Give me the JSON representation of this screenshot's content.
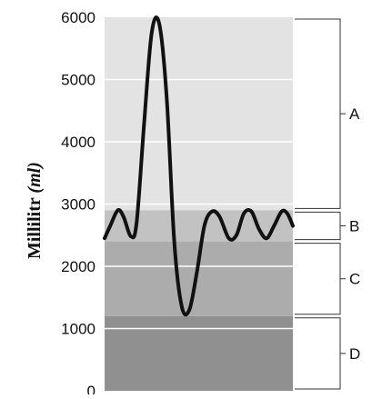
{
  "colors": {
    "band_A": "#e3e3e3",
    "band_B": "#c2c2c2",
    "band_C": "#acacac",
    "band_D": "#909090",
    "gridline": "#ffffff",
    "curve": "#111111",
    "bracket": "#333333"
  },
  "chart_data": {
    "type": "line",
    "title": "",
    "xlabel": "",
    "ylabel": "Millilitr",
    "ylabel_unit": "(ml)",
    "ylim": [
      0,
      6000
    ],
    "yticks": [
      0,
      1000,
      2000,
      3000,
      4000,
      5000,
      6000
    ],
    "ytick_labels": [
      "0",
      "1000",
      "2000",
      "3000",
      "4000",
      "5000",
      "6000"
    ],
    "grid": "horizontal",
    "bands": [
      {
        "label": "A",
        "from": 2900,
        "to": 6000
      },
      {
        "label": "B",
        "from": 2400,
        "to": 2900
      },
      {
        "label": "C",
        "from": 1200,
        "to": 2400
      },
      {
        "label": "D",
        "from": 0,
        "to": 1200
      }
    ],
    "series": [
      {
        "x": [
          0,
          3,
          7,
          10,
          14,
          17,
          21,
          25,
          29,
          33,
          37,
          41,
          45,
          49,
          53,
          57,
          61,
          66,
          70,
          74,
          78,
          82,
          86,
          90,
          94,
          97,
          100
        ],
        "values": [
          2450,
          2650,
          2900,
          2800,
          2480,
          2700,
          4300,
          5750,
          5900,
          4700,
          2400,
          1350,
          1300,
          1900,
          2650,
          2880,
          2800,
          2450,
          2500,
          2850,
          2880,
          2600,
          2450,
          2650,
          2880,
          2850,
          2650
        ]
      }
    ]
  }
}
